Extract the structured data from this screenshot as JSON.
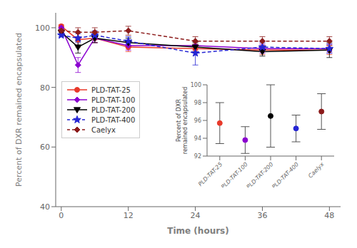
{
  "chart_data": [
    {
      "type": "line",
      "x": [
        0,
        3,
        6,
        12,
        24,
        36,
        48
      ],
      "xlabel": "Time (hours)",
      "ylabel": "Percent of DXR remained encapsulated",
      "xlim": [
        -1,
        50
      ],
      "ylim": [
        40,
        105
      ],
      "xticks": [
        0,
        12,
        24,
        36,
        48
      ],
      "yticks": [
        40,
        60,
        80,
        100
      ],
      "legend": "center left",
      "series": [
        {
          "name": "PLD-TAT-25",
          "color": "#e8392a",
          "marker": "circle",
          "line_style": "solid",
          "values": [
            100.5,
            96.0,
            96.5,
            93.5,
            93.0,
            92.5,
            92.5
          ],
          "yerr": [
            0.5,
            2.5,
            1.5,
            1.5,
            1.5,
            1.5,
            1.5
          ]
        },
        {
          "name": "PLD-TAT-100",
          "color": "#8b00d0",
          "marker": "diamond",
          "line_style": "solid",
          "values": [
            100.0,
            87.5,
            96.5,
            94.0,
            94.0,
            93.0,
            93.0
          ],
          "yerr": [
            0.5,
            2.5,
            1.5,
            1.5,
            1.5,
            1.5,
            1.5
          ]
        },
        {
          "name": "PLD-TAT-200",
          "color": "#000000",
          "marker": "triangle-down",
          "line_style": "solid",
          "values": [
            98.5,
            93.5,
            96.5,
            95.0,
            93.5,
            92.0,
            92.5
          ],
          "yerr": [
            0.5,
            2.0,
            1.5,
            1.5,
            1.5,
            1.5,
            2.5
          ]
        },
        {
          "name": "PLD-TAT-400",
          "color": "#2525d4",
          "marker": "star",
          "line_style": "dashed",
          "values": [
            97.5,
            96.5,
            97.5,
            95.5,
            91.5,
            93.5,
            93.0
          ],
          "yerr": [
            0.5,
            1.5,
            1.5,
            1.5,
            4.0,
            1.5,
            1.5
          ]
        },
        {
          "name": "Caelyx",
          "color": "#8b1a1a",
          "marker": "diamond",
          "line_style": "dashed",
          "values": [
            99.0,
            98.5,
            98.5,
            99.0,
            95.5,
            95.5,
            95.5
          ],
          "yerr": [
            0.5,
            1.5,
            1.5,
            1.5,
            1.5,
            1.5,
            1.5
          ]
        }
      ]
    },
    {
      "type": "scatter",
      "categories": [
        "PLD-TAT-25",
        "PLD-TAT-100",
        "PLD-TAT-200",
        "PLD-TAT-400",
        "Caelyx"
      ],
      "values": [
        95.7,
        93.8,
        96.5,
        95.1,
        97.0
      ],
      "yerr": [
        2.3,
        1.5,
        3.5,
        1.5,
        2.0
      ],
      "colors": [
        "#e8392a",
        "#8b00d0",
        "#000000",
        "#2525d4",
        "#8b1a1a"
      ],
      "ylim": [
        92,
        100
      ],
      "yticks": [
        92,
        94,
        96,
        98,
        100
      ],
      "ylabel": "Percent of DXR\nremained encapsulated"
    }
  ]
}
